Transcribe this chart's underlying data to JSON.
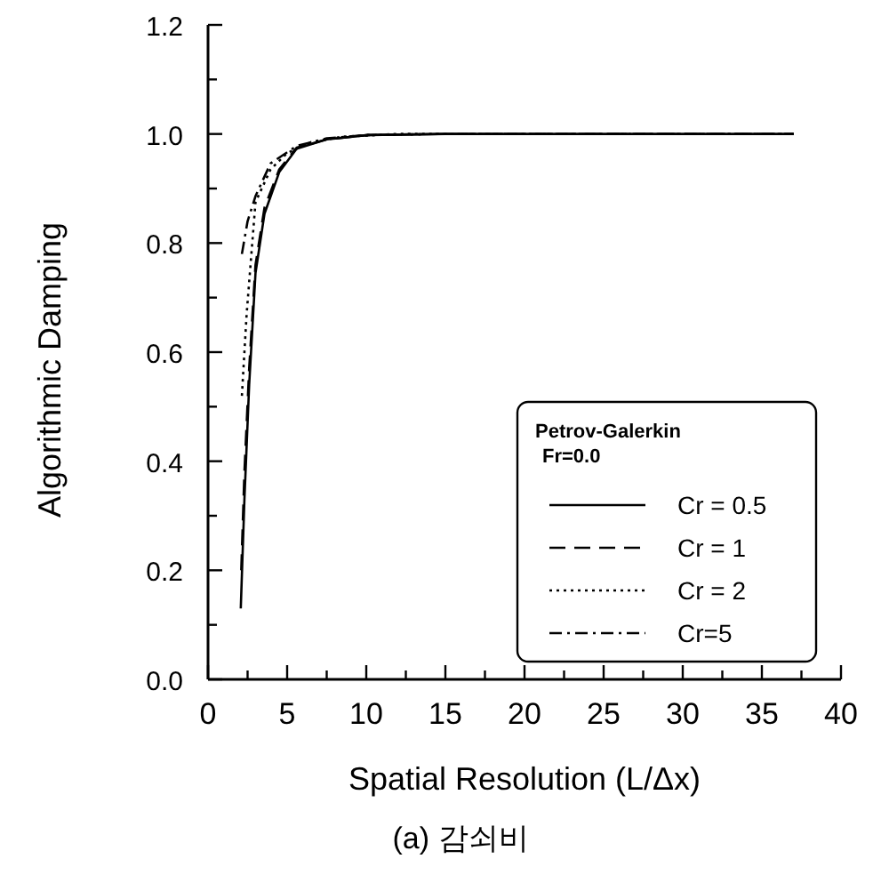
{
  "chart_data": {
    "type": "line",
    "xlabel": "Spatial Resolution (L/Δx)",
    "ylabel": "Algorithmic Damping",
    "legend_title": "Petrov-Galerkin\nFr=0.0",
    "legend": "bottom right",
    "grid": false,
    "marker": "none",
    "xlim": [
      0,
      40
    ],
    "xticks": [
      0,
      5,
      10,
      15,
      20,
      25,
      30,
      35,
      40
    ],
    "ylim": [
      0,
      1.2
    ],
    "yticks": [
      {
        "value": 0,
        "label": "0.0"
      },
      {
        "value": 0.2,
        "label": "0.2"
      },
      {
        "value": 0.4,
        "label": "0.4"
      },
      {
        "value": 0.6,
        "label": "0.6"
      },
      {
        "value": 0.8,
        "label": "0.8"
      },
      {
        "value": 1,
        "label": "1.0"
      },
      {
        "value": 1.2,
        "label": "1.2"
      }
    ],
    "annotations": [
      "(a) 감쇠비"
    ],
    "series": [
      {
        "name": "Cr = 0.5",
        "color": "#000000",
        "line_style": "solid",
        "x": [
          2.07,
          2.3,
          2.6,
          3.0,
          3.57,
          4.5,
          5.6,
          7.5,
          10.1,
          15,
          20,
          25,
          30,
          37
        ],
        "values": [
          0.13,
          0.33,
          0.54,
          0.745,
          0.854,
          0.93,
          0.973,
          0.99,
          0.998,
          1,
          1,
          1,
          1,
          1
        ]
      },
      {
        "name": "Cr = 1",
        "color": "#000000",
        "line_style": "dashed",
        "x": [
          2.1,
          2.3,
          2.6,
          3.0,
          3.57,
          4.5,
          5.6,
          7.5,
          10.1,
          15,
          20,
          25,
          30,
          37
        ],
        "values": [
          0.2,
          0.38,
          0.57,
          0.76,
          0.865,
          0.935,
          0.975,
          0.99,
          0.998,
          1,
          1,
          1,
          1,
          1
        ]
      },
      {
        "name": "Cr = 2",
        "color": "#000000",
        "line_style": "dotted",
        "x": [
          2.14,
          2.44,
          3.0,
          3.95,
          5.0,
          6.5,
          8.5,
          12,
          20,
          30,
          37
        ],
        "values": [
          0.52,
          0.67,
          0.875,
          0.935,
          0.965,
          0.985,
          0.995,
          1,
          1,
          1,
          1
        ]
      },
      {
        "name": "Cr=5",
        "color": "#000000",
        "line_style": "dashdot",
        "x": [
          2.14,
          2.5,
          3.0,
          3.95,
          5.6,
          7.5,
          10,
          15,
          20,
          30,
          37
        ],
        "values": [
          0.78,
          0.84,
          0.886,
          0.946,
          0.978,
          0.992,
          0.998,
          1,
          1,
          1,
          1
        ]
      }
    ]
  }
}
